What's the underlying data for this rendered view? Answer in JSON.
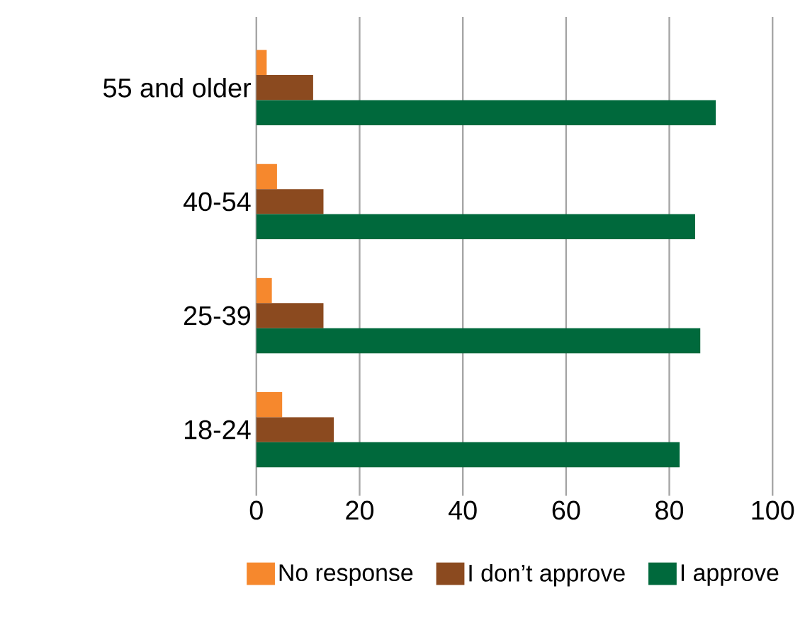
{
  "chart_data": {
    "type": "bar",
    "orientation": "horizontal",
    "categories": [
      "55 and older",
      "40-54",
      "25-39",
      "18-24"
    ],
    "series": [
      {
        "name": "No response",
        "color": "#f6882d",
        "values": [
          2,
          4,
          3,
          5
        ]
      },
      {
        "name": "I don’t approve",
        "color": "#8b4a1f",
        "values": [
          11,
          13,
          13,
          15
        ]
      },
      {
        "name": "I approve",
        "color": "#00693c",
        "values": [
          89,
          85,
          86,
          82
        ]
      }
    ],
    "xlim": [
      0,
      100
    ],
    "xticks": [
      0,
      20,
      40,
      60,
      80,
      100
    ],
    "grid": "x",
    "legend": "bottom"
  }
}
